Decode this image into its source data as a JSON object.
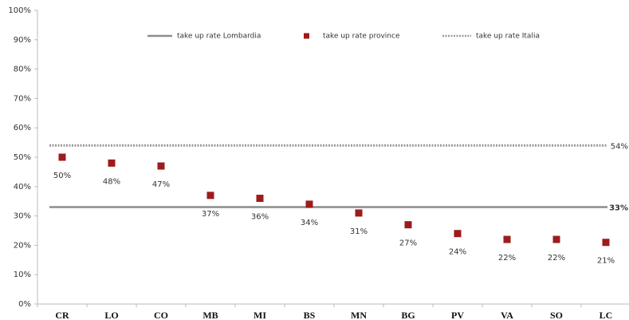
{
  "chart_data": {
    "type": "scatter",
    "categories": [
      "CR",
      "LO",
      "CO",
      "MB",
      "MI",
      "BS",
      "MN",
      "BG",
      "PV",
      "VA",
      "SO",
      "LC"
    ],
    "series": [
      {
        "name": "take up rate province",
        "color": "#9e1b1b",
        "values": [
          50,
          48,
          47,
          37,
          36,
          34,
          31,
          27,
          24,
          22,
          22,
          21
        ],
        "value_labels": [
          "50%",
          "48%",
          "47%",
          "37%",
          "36%",
          "34%",
          "31%",
          "27%",
          "24%",
          "22%",
          "22%",
          "21%"
        ]
      }
    ],
    "reference_lines": [
      {
        "name": "take up rate Lombardia",
        "value": 33,
        "value_label": "33%",
        "color": "#8c8c8c",
        "style": "solid"
      },
      {
        "name": "take up rate Italia",
        "value": 54,
        "value_label": "54%",
        "color": "#9a9a9a",
        "style": "dotted"
      }
    ],
    "ylim": [
      0,
      100
    ],
    "yticks": [
      {
        "value": 0,
        "label": "0%"
      },
      {
        "value": 10,
        "label": "10%"
      },
      {
        "value": 20,
        "label": "20%"
      },
      {
        "value": 30,
        "label": "30%"
      },
      {
        "value": 40,
        "label": "40%"
      },
      {
        "value": 50,
        "label": "50%"
      },
      {
        "value": 60,
        "label": "60%"
      },
      {
        "value": 70,
        "label": "70%"
      },
      {
        "value": 80,
        "label": "80%"
      },
      {
        "value": 90,
        "label": "90%"
      },
      {
        "value": 100,
        "label": "100%"
      }
    ],
    "grid": false,
    "legend": "top"
  }
}
